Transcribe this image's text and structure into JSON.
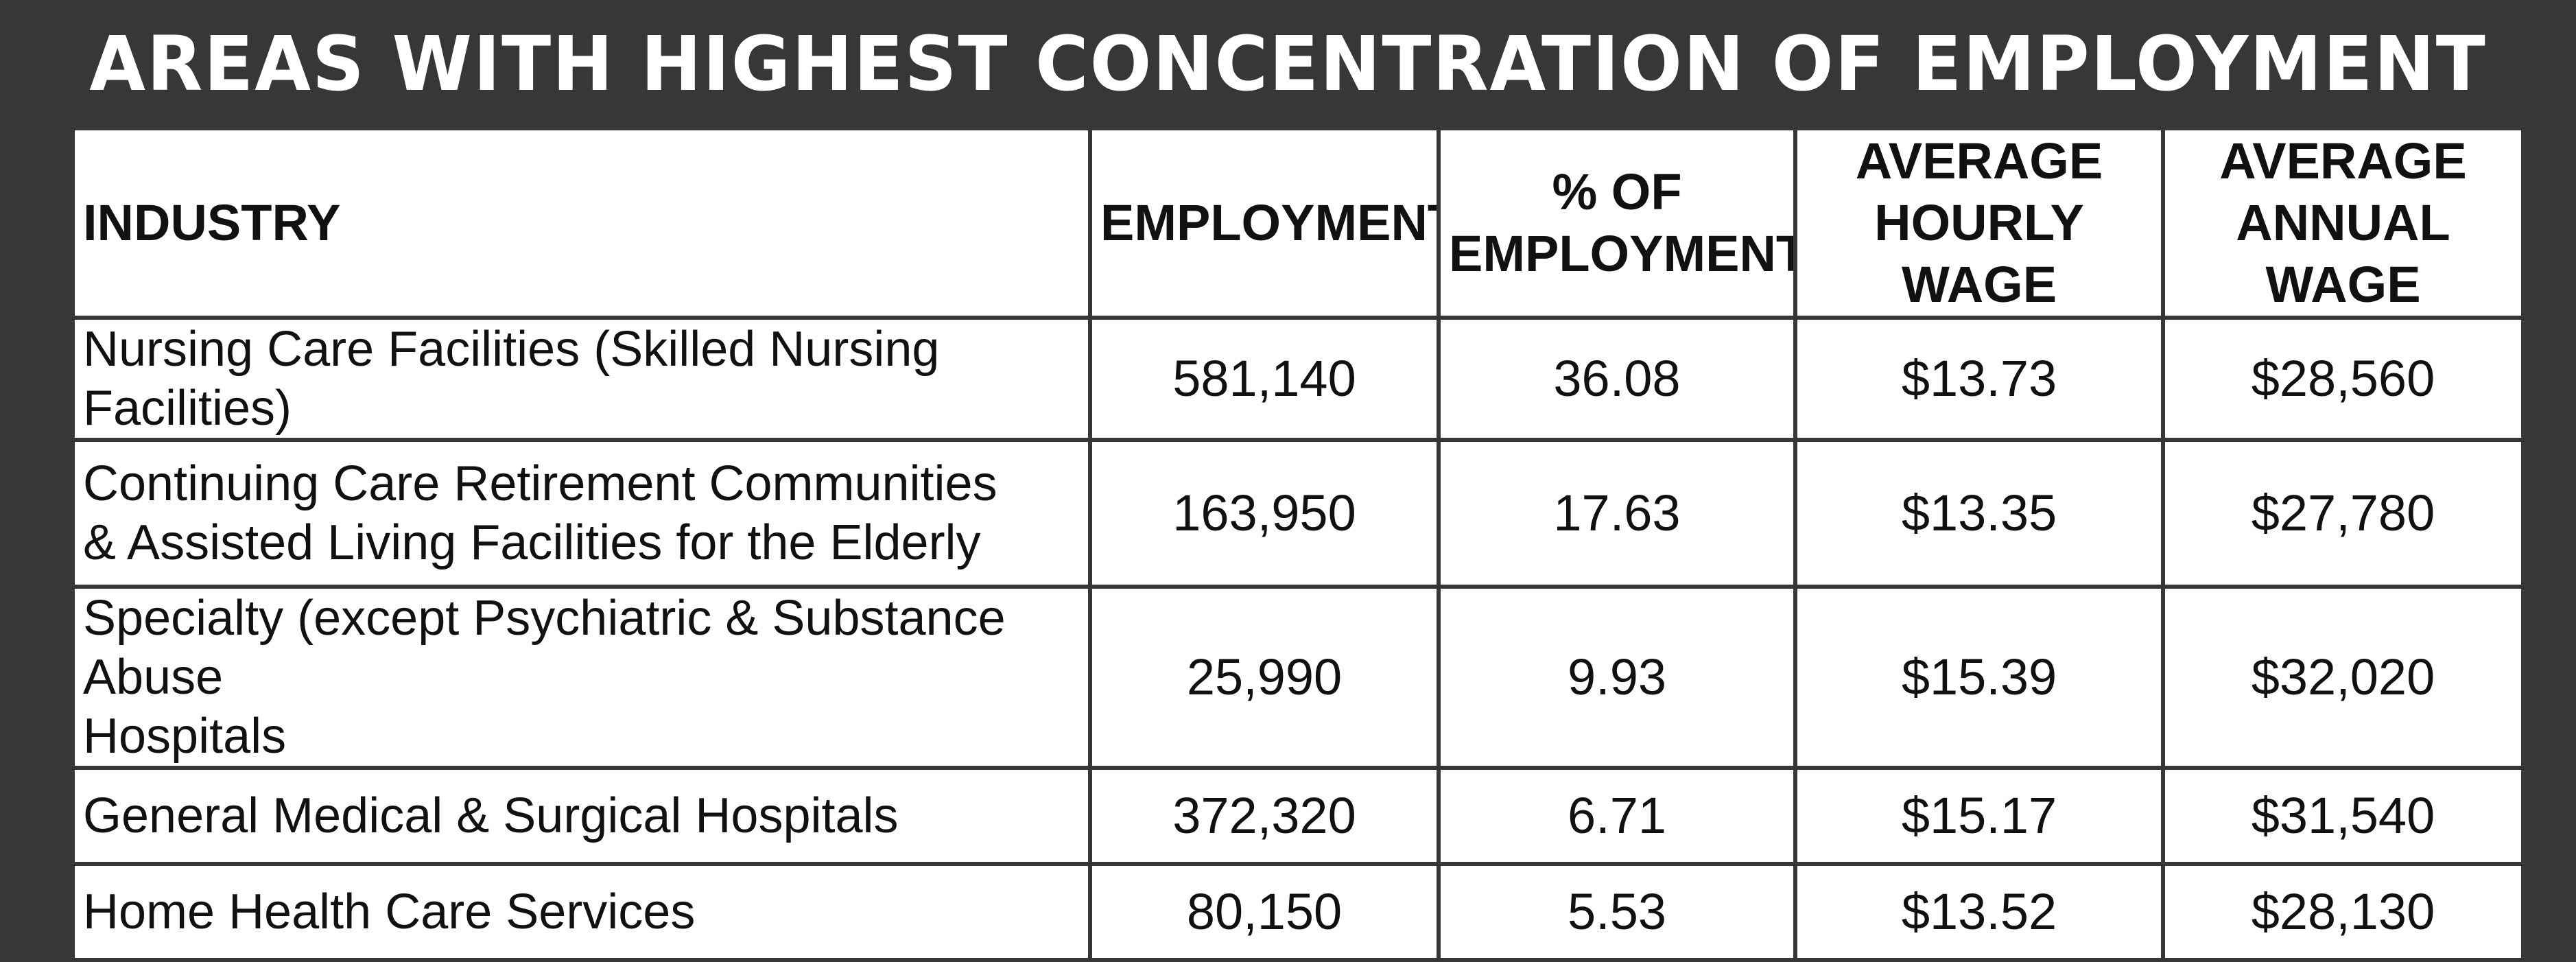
{
  "title": "AREAS WITH HIGHEST CONCENTRATION OF EMPLOYMENT",
  "headers": {
    "industry": "INDUSTRY",
    "employment": "EMPLOYMENT",
    "pct_line1": "% OF",
    "pct_line2": "EMPLOYMENT",
    "hourly_line1": "AVERAGE",
    "hourly_line2": "HOURLY WAGE",
    "annual_line1": "AVERAGE",
    "annual_line2": "ANNUAL WAGE"
  },
  "rows": [
    {
      "industry_line1": "Nursing Care Facilities (Skilled Nursing Facilities)",
      "industry_line2": "",
      "employment": "581,140",
      "pct": "36.08",
      "hourly": "$13.73",
      "annual": "$28,560"
    },
    {
      "industry_line1": "Continuing Care Retirement Communities",
      "industry_line2": "& Assisted Living Facilities for the Elderly",
      "employment": "163,950",
      "pct": "17.63",
      "hourly": "$13.35",
      "annual": "$27,780"
    },
    {
      "industry_line1": "Specialty (except Psychiatric & Substance Abuse",
      "industry_line2": "Hospitals",
      "employment": "25,990",
      "pct": "9.93",
      "hourly": "$15.39",
      "annual": "$32,020"
    },
    {
      "industry_line1": "General Medical & Surgical Hospitals",
      "industry_line2": "",
      "employment": "372,320",
      "pct": "6.71",
      "hourly": "$15.17",
      "annual": "$31,540"
    },
    {
      "industry_line1": "Home Health Care Services",
      "industry_line2": "",
      "employment": "80,150",
      "pct": "5.53",
      "hourly": "$13.52",
      "annual": "$28,130"
    }
  ],
  "chart_data": {
    "type": "table",
    "title": "AREAS WITH HIGHEST CONCENTRATION OF EMPLOYMENT",
    "columns": [
      "INDUSTRY",
      "EMPLOYMENT",
      "% OF EMPLOYMENT",
      "AVERAGE HOURLY WAGE",
      "AVERAGE ANNUAL WAGE"
    ],
    "rows": [
      [
        "Nursing Care Facilities (Skilled Nursing Facilities)",
        581140,
        36.08,
        13.73,
        28560
      ],
      [
        "Continuing Care Retirement Communities & Assisted Living Facilities for the Elderly",
        163950,
        17.63,
        13.35,
        27780
      ],
      [
        "Specialty (except Psychiatric & Substance Abuse Hospitals",
        25990,
        9.93,
        15.39,
        32020
      ],
      [
        "General Medical & Surgical Hospitals",
        372320,
        6.71,
        15.17,
        31540
      ],
      [
        "Home Health Care Services",
        80150,
        5.53,
        13.52,
        28130
      ]
    ]
  }
}
